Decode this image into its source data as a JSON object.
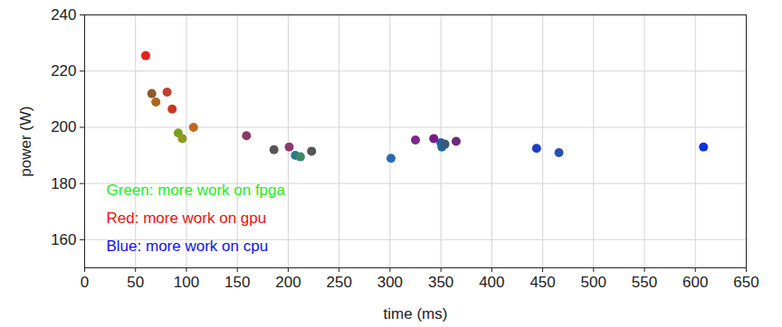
{
  "chart_data": {
    "type": "scatter",
    "xlabel": "time (ms)",
    "ylabel": "power (W)",
    "x": [
      60,
      66,
      70,
      81,
      86,
      107,
      92,
      96,
      159,
      186,
      201,
      207,
      212,
      223,
      301,
      325,
      343,
      350,
      351,
      354,
      365,
      444,
      466,
      608
    ],
    "values": [
      225.5,
      212,
      209,
      212.5,
      206.5,
      200,
      198,
      196,
      197,
      192,
      193,
      190,
      189.5,
      191.5,
      189,
      195.5,
      196,
      194.5,
      193,
      194,
      195,
      192.5,
      191,
      193
    ],
    "colors": [
      "#e8201a",
      "#8e5a2a",
      "#a56a22",
      "#c0402e",
      "#cc3522",
      "#c0681e",
      "#7aa020",
      "#8f9a22",
      "#8a3a62",
      "#555555",
      "#8a3a6a",
      "#2a7a8a",
      "#3a8a6a",
      "#555555",
      "#2a6ab0",
      "#7a2a8a",
      "#7a1a8a",
      "#2a5aa0",
      "#1a6a9a",
      "#3a5a7a",
      "#6a2a7a",
      "#2040c0",
      "#2a50b0",
      "#1030e0"
    ],
    "marker": "circle",
    "xlim": [
      0,
      650
    ],
    "ylim": [
      150,
      240
    ],
    "xticks": [
      0,
      50,
      100,
      150,
      200,
      250,
      300,
      350,
      400,
      450,
      500,
      550,
      600,
      650
    ],
    "yticks": [
      160,
      180,
      200,
      220,
      240
    ],
    "grid": true,
    "annotations": [
      {
        "text": "Green: more work on fpga",
        "color": "#22ee22"
      },
      {
        "text": "Red: more work on gpu",
        "color": "#ee1111"
      },
      {
        "text": "Blue: more work on cpu",
        "color": "#1111ee"
      }
    ]
  }
}
